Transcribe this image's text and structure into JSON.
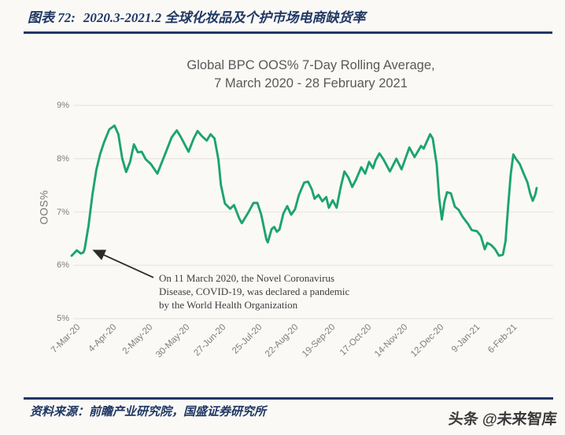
{
  "page": {
    "figure_label": "图表 72:",
    "figure_title": "2020.3-2021.2 全球化妆品及个护市场电商缺货率",
    "source_label": "资料来源：前瞻产业研究院，国盛证券研究所",
    "watermark": "头条 @未来智库",
    "accent_color": "#1f3864"
  },
  "chart_data": {
    "type": "line",
    "title_line1": "Global BPC OOS% 7-Day Rolling Average,",
    "title_line2": "7 March 2020 - 28 February 2021",
    "ylabel": "OOS%",
    "ylim": [
      5,
      9
    ],
    "y_tick_labels": [
      "9%",
      "8%",
      "7%",
      "6%",
      "5%"
    ],
    "y_tick_values": [
      9,
      8,
      7,
      6,
      5
    ],
    "x_tick_labels": [
      "7-Mar-20",
      "4-Apr-20",
      "2-May-20",
      "30-May-20",
      "27-Jun-20",
      "25-Jul-20",
      "22-Aug-20",
      "19-Sep-20",
      "17-Oct-20",
      "14-Nov-20",
      "12-Dec-20",
      "9-Jan-21",
      "6-Feb-21"
    ],
    "x_tick_interval_days": 28,
    "x_range_days": [
      0,
      358
    ],
    "grid": "horizontal-only",
    "legend": "none",
    "line_color": "#1ca46e",
    "grid_color": "#e9e6e1",
    "series_name": "Global BPC OOS% 7-day rolling average",
    "points_day_pct": [
      [
        0,
        6.18
      ],
      [
        2,
        6.23
      ],
      [
        4,
        6.28
      ],
      [
        7,
        6.22
      ],
      [
        9,
        6.24
      ],
      [
        10,
        6.3
      ],
      [
        13,
        6.74
      ],
      [
        16,
        7.32
      ],
      [
        19,
        7.79
      ],
      [
        22,
        8.09
      ],
      [
        25,
        8.31
      ],
      [
        29,
        8.55
      ],
      [
        33,
        8.62
      ],
      [
        36,
        8.46
      ],
      [
        39,
        8.0
      ],
      [
        42,
        7.75
      ],
      [
        45,
        7.94
      ],
      [
        48,
        8.27
      ],
      [
        51,
        8.12
      ],
      [
        54,
        8.13
      ],
      [
        57,
        7.99
      ],
      [
        61,
        7.9
      ],
      [
        66,
        7.72
      ],
      [
        72,
        8.09
      ],
      [
        77,
        8.4
      ],
      [
        81,
        8.53
      ],
      [
        84,
        8.41
      ],
      [
        90,
        8.13
      ],
      [
        94,
        8.38
      ],
      [
        97,
        8.52
      ],
      [
        100,
        8.43
      ],
      [
        104,
        8.34
      ],
      [
        107,
        8.46
      ],
      [
        110,
        8.38
      ],
      [
        113,
        7.99
      ],
      [
        115,
        7.5
      ],
      [
        118,
        7.16
      ],
      [
        122,
        7.06
      ],
      [
        125,
        7.13
      ],
      [
        129,
        6.88
      ],
      [
        131,
        6.79
      ],
      [
        136,
        6.99
      ],
      [
        140,
        7.17
      ],
      [
        143,
        7.17
      ],
      [
        146,
        6.95
      ],
      [
        150,
        6.48
      ],
      [
        151,
        6.43
      ],
      [
        154,
        6.68
      ],
      [
        156,
        6.72
      ],
      [
        158,
        6.63
      ],
      [
        160,
        6.67
      ],
      [
        163,
        6.97
      ],
      [
        166,
        7.11
      ],
      [
        169,
        6.95
      ],
      [
        172,
        7.05
      ],
      [
        175,
        7.32
      ],
      [
        179,
        7.55
      ],
      [
        182,
        7.57
      ],
      [
        185,
        7.42
      ],
      [
        187,
        7.25
      ],
      [
        190,
        7.32
      ],
      [
        193,
        7.2
      ],
      [
        196,
        7.28
      ],
      [
        198,
        7.08
      ],
      [
        201,
        7.22
      ],
      [
        204,
        7.08
      ],
      [
        207,
        7.45
      ],
      [
        210,
        7.76
      ],
      [
        213,
        7.65
      ],
      [
        216,
        7.47
      ],
      [
        219,
        7.61
      ],
      [
        223,
        7.84
      ],
      [
        226,
        7.72
      ],
      [
        229,
        7.94
      ],
      [
        232,
        7.82
      ],
      [
        234,
        7.97
      ],
      [
        237,
        8.1
      ],
      [
        240,
        7.99
      ],
      [
        245,
        7.76
      ],
      [
        250,
        8.0
      ],
      [
        254,
        7.8
      ],
      [
        260,
        8.21
      ],
      [
        264,
        8.03
      ],
      [
        269,
        8.24
      ],
      [
        271,
        8.19
      ],
      [
        276,
        8.46
      ],
      [
        278,
        8.38
      ],
      [
        281,
        7.9
      ],
      [
        283,
        7.25
      ],
      [
        285,
        6.86
      ],
      [
        287,
        7.19
      ],
      [
        289,
        7.37
      ],
      [
        292,
        7.35
      ],
      [
        295,
        7.1
      ],
      [
        298,
        7.04
      ],
      [
        301,
        6.91
      ],
      [
        305,
        6.78
      ],
      [
        308,
        6.66
      ],
      [
        312,
        6.64
      ],
      [
        315,
        6.55
      ],
      [
        318,
        6.3
      ],
      [
        320,
        6.42
      ],
      [
        323,
        6.38
      ],
      [
        326,
        6.3
      ],
      [
        329,
        6.18
      ],
      [
        332,
        6.2
      ],
      [
        334,
        6.45
      ],
      [
        336,
        7.1
      ],
      [
        338,
        7.7
      ],
      [
        340,
        8.08
      ],
      [
        342,
        8.0
      ],
      [
        345,
        7.9
      ],
      [
        348,
        7.72
      ],
      [
        351,
        7.55
      ],
      [
        353,
        7.35
      ],
      [
        355,
        7.21
      ],
      [
        357,
        7.33
      ],
      [
        358,
        7.45
      ]
    ],
    "annotation": {
      "line1": "On 11 March 2020, the Novel Coronavirus",
      "line2": "Disease, COVID-19, was declared a pandemic",
      "line3": "by the World Health Organization",
      "arrow_from_day_pct": [
        63,
        5.77
      ],
      "arrow_to_day_pct": [
        18,
        6.27
      ],
      "arrow_color": "#2b2b2b"
    }
  }
}
